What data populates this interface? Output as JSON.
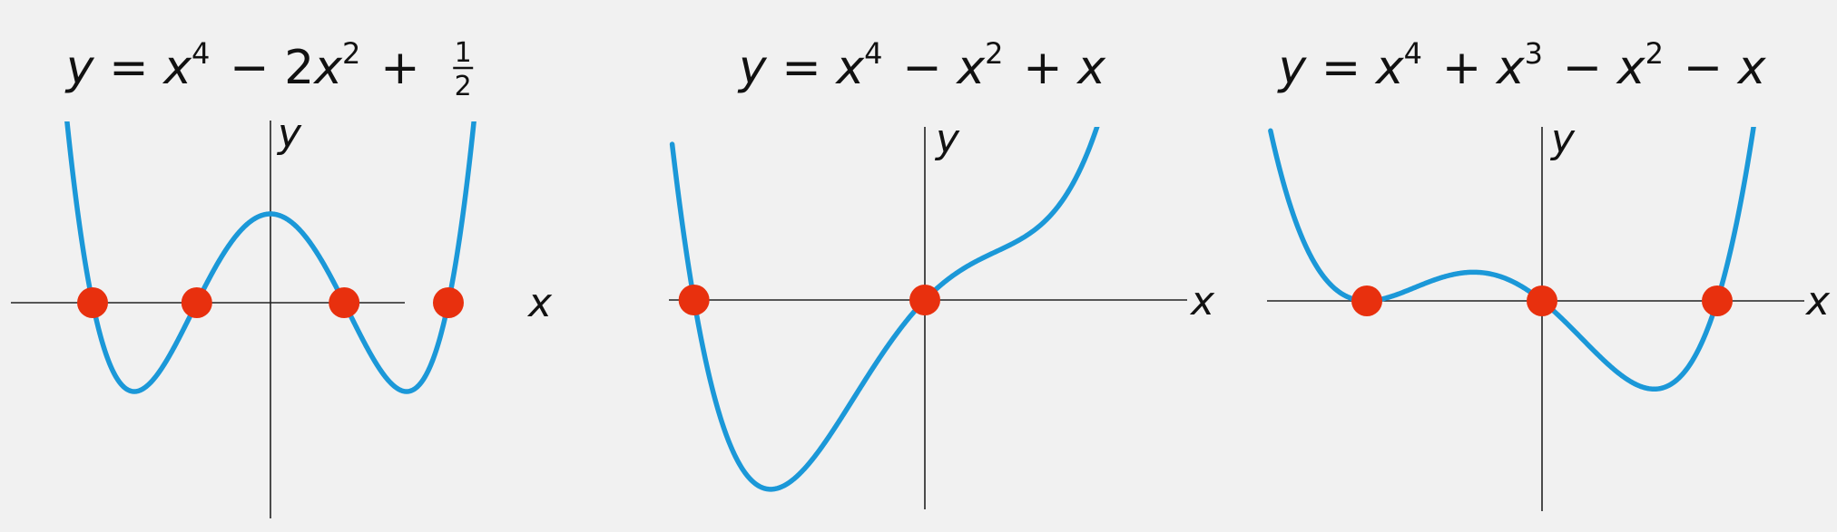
{
  "colors": {
    "background": "#f1f1f1",
    "curve": "#1b98d8",
    "root_marker": "#e8300e",
    "axis": "#222222",
    "text": "#111111"
  },
  "chart_data": [
    {
      "type": "line",
      "title": {
        "lhs": "y",
        "op": "=",
        "terms": [
          {
            "base": "x",
            "sup": "4"
          },
          {
            "op": "−",
            "coef": "2",
            "base": "x",
            "sup": "2"
          },
          {
            "op": "+",
            "frac_num": "1",
            "frac_den": "2"
          }
        ]
      },
      "xlabel": "x",
      "ylabel": "y",
      "function": "x^4 - 2x^2 + 1/2",
      "coefficients": [
        0.5,
        0,
        -2,
        0,
        1
      ],
      "xlim": [
        -1.6,
        1.6
      ],
      "ylim": [
        -1.45,
        1.1
      ],
      "roots": [
        -1.3066,
        -0.5412,
        0.5412,
        1.3066
      ],
      "grid": false,
      "legend": "none"
    },
    {
      "type": "line",
      "title": {
        "lhs": "y",
        "op": "=",
        "terms": [
          {
            "base": "x",
            "sup": "4"
          },
          {
            "op": "−",
            "base": "x",
            "sup": "2"
          },
          {
            "op": "+",
            "base": "x"
          }
        ]
      },
      "xlabel": "x",
      "ylabel": "y",
      "function": "x^4 - x^2 + x",
      "coefficients": [
        0,
        1,
        -1,
        0,
        1
      ],
      "xlim": [
        -1.45,
        1.75
      ],
      "ylim": [
        -1.35,
        1.15
      ],
      "roots": [
        -1.3247,
        0
      ],
      "grid": false,
      "legend": "none"
    },
    {
      "type": "line",
      "title": {
        "lhs": "y",
        "op": "=",
        "terms": [
          {
            "base": "x",
            "sup": "4"
          },
          {
            "op": "+",
            "base": "x",
            "sup": "3"
          },
          {
            "op": "−",
            "base": "x",
            "sup": "2"
          },
          {
            "op": "−",
            "base": "x"
          }
        ]
      },
      "xlabel": "x",
      "ylabel": "y",
      "function": "x^4 + x^3 - x^2 - x",
      "coefficients": [
        0,
        -1,
        -1,
        1,
        1
      ],
      "xlim": [
        -1.55,
        1.55
      ],
      "ylim": [
        -1.1,
        0.95
      ],
      "roots": [
        -1,
        0,
        1
      ],
      "grid": false,
      "legend": "none"
    }
  ]
}
